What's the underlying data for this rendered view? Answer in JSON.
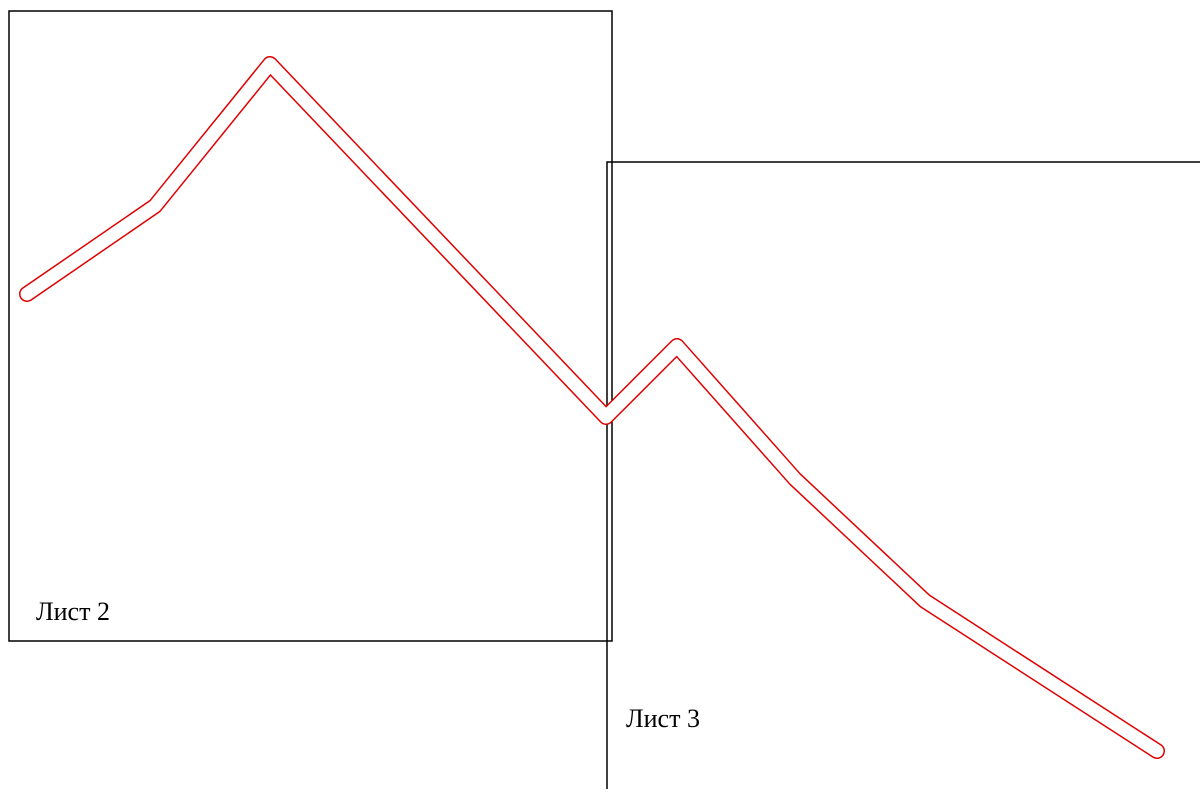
{
  "sheets": [
    {
      "label": "Лист 2"
    },
    {
      "label": "Лист 3"
    }
  ],
  "colors": {
    "sheet_border": "#000000",
    "path_outline": "#e00000",
    "background": "#ffffff"
  }
}
